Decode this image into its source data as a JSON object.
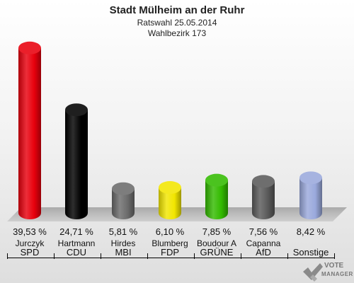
{
  "header": {
    "title": "Stadt Mülheim an der Ruhr",
    "subtitle": "Ratswahl 25.05.2014",
    "district": "Wahlbezirk 173"
  },
  "chart_data": {
    "type": "bar",
    "title": "Stadt Mülheim an der Ruhr",
    "subtitle": "Ratswahl 25.05.2014 / Wahlbezirk 173",
    "categories": [
      "SPD",
      "CDU",
      "MBI",
      "FDP",
      "GRÜNE",
      "AfD",
      "Sonstige"
    ],
    "candidates": [
      "Jurczyk",
      "Hartmann",
      "Hirdes",
      "Blumberg",
      "Boudour A",
      "Capanna",
      ""
    ],
    "values": [
      39.53,
      24.71,
      5.81,
      6.1,
      7.85,
      7.56,
      8.42
    ],
    "value_labels": [
      "39,53 %",
      "24,71 %",
      "5,81 %",
      "6,10 %",
      "7,85 %",
      "7,56 %",
      "8,42 %"
    ],
    "colors": [
      "#e8000d",
      "#000000",
      "#6b6b6b",
      "#f2e600",
      "#33bb00",
      "#5a5a5a",
      "#9aa9dc"
    ],
    "ylim": [
      0,
      40
    ],
    "grid": false,
    "legend": "none"
  },
  "logo": {
    "line1": "VOTE",
    "line2": "MANAGER"
  }
}
